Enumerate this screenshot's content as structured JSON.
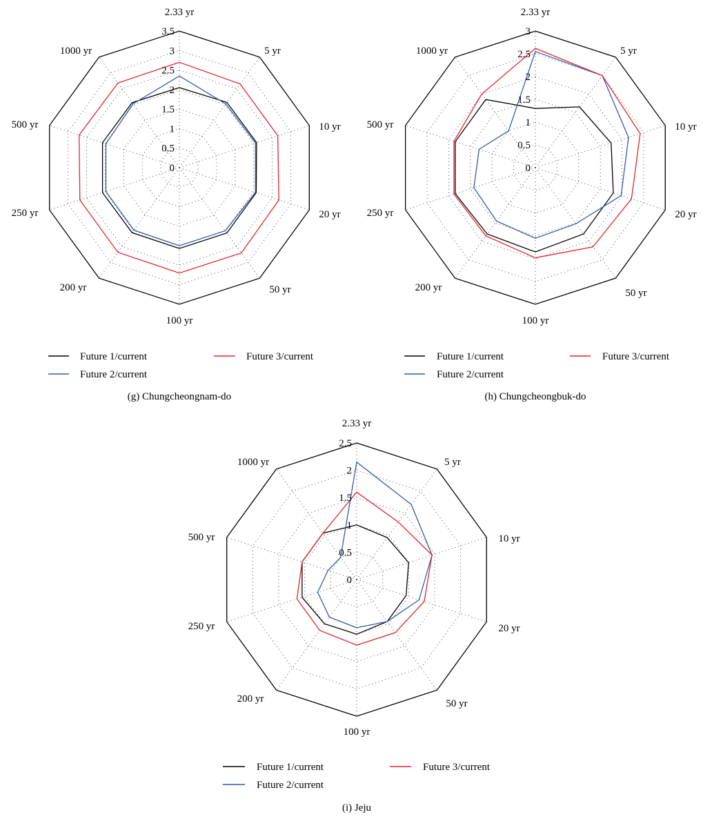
{
  "legend_labels": [
    "Future 1/current",
    "Future 2/current",
    "Future 3/current"
  ],
  "series_colors": [
    "#000000",
    "#2f5aa8",
    "#e0242b"
  ],
  "chart_data": [
    {
      "type": "radar",
      "caption": "(g)  Chungcheongnam-do",
      "categories": [
        "2.33 yr",
        "5 yr",
        "10 yr",
        "20 yr",
        "50 yr",
        "100 yr",
        "200 yr",
        "250 yr",
        "500 yr",
        "1000 yr"
      ],
      "rmax": 3.5,
      "ticks": [
        0,
        0.5,
        1,
        1.5,
        2,
        2.5,
        3,
        3.5
      ],
      "tick_labels": [
        "0",
        "0.5",
        "1",
        "1.5",
        "2",
        "2.5",
        "3",
        "3.5"
      ],
      "series": [
        {
          "name": "Future 1/current",
          "values": [
            2.05,
            2.07,
            2.08,
            2.07,
            2.07,
            2.07,
            2.06,
            2.07,
            2.07,
            2.06
          ]
        },
        {
          "name": "Future 2/current",
          "values": [
            2.35,
            2.02,
            2.05,
            2.05,
            2.0,
            2.0,
            1.98,
            1.98,
            1.98,
            2.02
          ]
        },
        {
          "name": "Future 3/current",
          "values": [
            2.7,
            2.65,
            2.65,
            2.68,
            2.7,
            2.7,
            2.68,
            2.68,
            2.7,
            2.68
          ]
        }
      ]
    },
    {
      "type": "radar",
      "caption": "(h)  Chungcheongbuk-do",
      "categories": [
        "2.33 yr",
        "5 yr",
        "10 yr",
        "20 yr",
        "50 yr",
        "100 yr",
        "200 yr",
        "250 yr",
        "500 yr",
        "1000 yr"
      ],
      "rmax": 3,
      "ticks": [
        0,
        0.5,
        1,
        1.5,
        2,
        2.5,
        3
      ],
      "tick_labels": [
        "0",
        "0.5",
        "1",
        "1.5",
        "2",
        "2.5",
        "3"
      ],
      "series": [
        {
          "name": "Future 1/current",
          "values": [
            1.3,
            1.65,
            1.75,
            1.8,
            1.8,
            1.85,
            1.8,
            1.85,
            1.85,
            1.85
          ]
        },
        {
          "name": "Future 2/current",
          "values": [
            2.55,
            2.5,
            2.15,
            1.98,
            1.52,
            1.55,
            1.45,
            1.42,
            1.3,
            1.0
          ]
        },
        {
          "name": "Future 3/current",
          "values": [
            2.62,
            2.5,
            2.42,
            2.22,
            2.15,
            1.98,
            1.85,
            1.88,
            1.88,
            2.0
          ]
        }
      ]
    },
    {
      "type": "radar",
      "caption": "(i)  Jeju",
      "categories": [
        "2.33 yr",
        "5 yr",
        "10 yr",
        "20 yr",
        "50 yr",
        "100 yr",
        "200 yr",
        "250 yr",
        "500 yr",
        "1000 yr"
      ],
      "rmax": 2.5,
      "ticks": [
        0,
        0.5,
        1,
        1.5,
        2,
        2.5
      ],
      "tick_labels": [
        "0",
        "0.5",
        "1",
        "1.5",
        "2",
        "2.5"
      ],
      "series": [
        {
          "name": "Future 1/current",
          "values": [
            1.0,
            0.95,
            1.0,
            0.95,
            0.95,
            1.0,
            1.0,
            1.05,
            1.05,
            1.05
          ]
        },
        {
          "name": "Future 2/current",
          "values": [
            2.15,
            1.7,
            1.45,
            1.2,
            0.95,
            0.88,
            0.85,
            0.75,
            0.55,
            0.5
          ]
        },
        {
          "name": "Future 3/current",
          "values": [
            1.6,
            1.3,
            1.45,
            1.3,
            1.2,
            1.2,
            1.15,
            1.15,
            1.05,
            1.05
          ]
        }
      ]
    }
  ]
}
